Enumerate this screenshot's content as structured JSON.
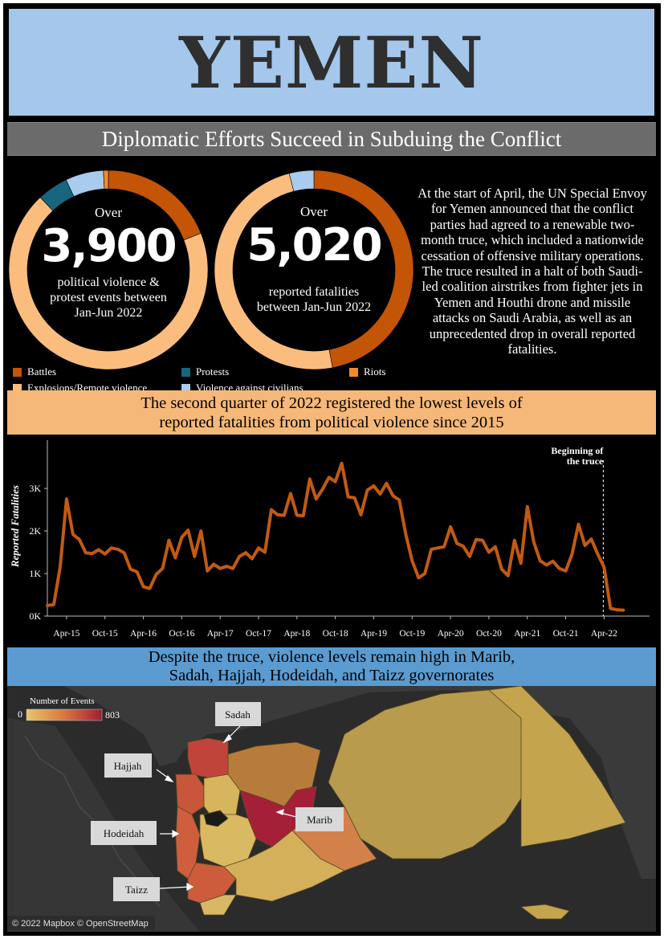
{
  "header": {
    "title": "YEMEN",
    "subtitle": "Diplomatic Efforts Succeed in Subduing the Conflict"
  },
  "colors": {
    "battles": "#c45506",
    "explosions": "#fbbd7e",
    "protests": "#17667d",
    "riots": "#ef8b2c",
    "vac": "#a9cbed",
    "line": "#c25a12"
  },
  "events_donut": {
    "prefix": "Over",
    "value": "3,900",
    "caption_line1": "political violence &",
    "caption_line2": "protest events between",
    "caption_line3": "Jan-Jun 2022",
    "slices": [
      {
        "name": "Battles",
        "value": 19
      },
      {
        "name": "Explosions/Remote violence",
        "value": 69
      },
      {
        "name": "Protests",
        "value": 5
      },
      {
        "name": "Violence against civilians",
        "value": 6.2
      },
      {
        "name": "Riots",
        "value": 0.8
      }
    ]
  },
  "fatalities_donut": {
    "prefix": "Over",
    "value": "5,020",
    "caption_line1": "reported fatalities",
    "caption_line2": "between Jan-Jun 2022",
    "slices": [
      {
        "name": "Battles",
        "value": 47
      },
      {
        "name": "Explosions/Remote violence",
        "value": 49
      },
      {
        "name": "Violence against civilians",
        "value": 4
      }
    ]
  },
  "legend": {
    "battles": "Battles",
    "protests": "Protests",
    "riots": "Riots",
    "explosions": "Explosions/Remote violence",
    "vac": "Violence against civilians"
  },
  "description": "At the start of April, the UN Special Envoy for Yemen announced that the conflict parties had agreed to a renewable two-month truce, which included a nationwide cessation of offensive military operations. The truce resulted in a halt of both Saudi-led coalition airstrikes from fighter jets in Yemen and Houthi drone and missile attacks on Saudi Arabia, as well as an unprecedented drop in overall reported fatalities.",
  "line_section": {
    "heading_line1": "The second quarter of 2022 registered the lowest levels of",
    "heading_line2": "reported fatalities from political violence since 2015"
  },
  "chart_data": {
    "type": "line",
    "title": "",
    "ylabel": "Reported Fatalities",
    "ylim": [
      0,
      3700
    ],
    "y_ticks": [
      0,
      1000,
      2000,
      3000
    ],
    "y_tick_labels": [
      "0K",
      "1K",
      "2K",
      "3K"
    ],
    "x_tick_labels": [
      "Apr-15",
      "Oct-15",
      "Apr-16",
      "Oct-16",
      "Apr-17",
      "Oct-17",
      "Apr-18",
      "Oct-18",
      "Apr-19",
      "Oct-19",
      "Apr-20",
      "Oct-20",
      "Apr-21",
      "Oct-21",
      "Apr-22"
    ],
    "x_tick_months": [
      3,
      9,
      15,
      21,
      27,
      33,
      39,
      45,
      51,
      57,
      63,
      69,
      75,
      81,
      87
    ],
    "annotation": {
      "line1": "Beginning of",
      "line2": "the truce",
      "month_index": 87
    },
    "series": [
      {
        "name": "Reported Fatalities",
        "values": [
          250,
          270,
          1150,
          2750,
          1920,
          1800,
          1490,
          1470,
          1560,
          1460,
          1600,
          1570,
          1490,
          1100,
          1040,
          690,
          650,
          980,
          1120,
          1780,
          1370,
          1850,
          2020,
          1400,
          2000,
          1060,
          1220,
          1120,
          1170,
          1120,
          1400,
          1490,
          1350,
          1600,
          1500,
          2500,
          2380,
          2370,
          2880,
          2370,
          2360,
          3220,
          2750,
          2980,
          3260,
          3160,
          3590,
          2800,
          2780,
          2380,
          2960,
          3060,
          2870,
          3120,
          2830,
          2730,
          1930,
          1300,
          900,
          1000,
          1570,
          1600,
          1630,
          2100,
          1710,
          1640,
          1400,
          1800,
          1780,
          1500,
          1630,
          1100,
          950,
          1780,
          1240,
          2570,
          1750,
          1300,
          1200,
          1290,
          1120,
          1060,
          1460,
          2160,
          1660,
          1810,
          1460,
          1150,
          180,
          150,
          140
        ]
      }
    ]
  },
  "map_section": {
    "heading_line1": "Despite the truce, violence levels remain high in Marib,",
    "heading_line2": "Sadah, Hajjah, Hodeidah, and Taizz governorates",
    "legend_title": "Number of Events",
    "legend_min": "0",
    "legend_max": "803",
    "labels": {
      "sadah": "Sadah",
      "hajjah": "Hajjah",
      "hodeidah": "Hodeidah",
      "marib": "Marib",
      "taizz": "Taizz"
    },
    "attribution": "© 2022 Mapbox © OpenStreetMap"
  }
}
